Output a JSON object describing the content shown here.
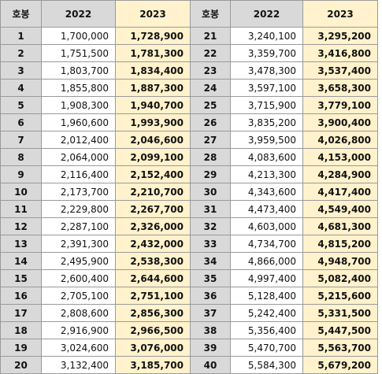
{
  "headers": [
    "호봉",
    "2022",
    "2023",
    "호봉",
    "2022",
    "2023"
  ],
  "rows": [
    [
      "1",
      "1,700,000",
      "1,728,900",
      "21",
      "3,240,100",
      "3,295,200"
    ],
    [
      "2",
      "1,751,500",
      "1,781,300",
      "22",
      "3,359,700",
      "3,416,800"
    ],
    [
      "3",
      "1,803,700",
      "1,834,400",
      "23",
      "3,478,300",
      "3,537,400"
    ],
    [
      "4",
      "1,855,800",
      "1,887,300",
      "24",
      "3,597,100",
      "3,658,300"
    ],
    [
      "5",
      "1,908,300",
      "1,940,700",
      "25",
      "3,715,900",
      "3,779,100"
    ],
    [
      "6",
      "1,960,600",
      "1,993,900",
      "26",
      "3,835,200",
      "3,900,400"
    ],
    [
      "7",
      "2,012,400",
      "2,046,600",
      "27",
      "3,959,500",
      "4,026,800"
    ],
    [
      "8",
      "2,064,000",
      "2,099,100",
      "28",
      "4,083,600",
      "4,153,000"
    ],
    [
      "9",
      "2,116,400",
      "2,152,400",
      "29",
      "4,213,300",
      "4,284,900"
    ],
    [
      "10",
      "2,173,700",
      "2,210,700",
      "30",
      "4,343,600",
      "4,417,400"
    ],
    [
      "11",
      "2,229,800",
      "2,267,700",
      "31",
      "4,473,400",
      "4,549,400"
    ],
    [
      "12",
      "2,287,100",
      "2,326,000",
      "32",
      "4,603,000",
      "4,681,300"
    ],
    [
      "13",
      "2,391,300",
      "2,432,000",
      "33",
      "4,734,700",
      "4,815,200"
    ],
    [
      "14",
      "2,495,900",
      "2,538,300",
      "34",
      "4,866,000",
      "4,948,700"
    ],
    [
      "15",
      "2,600,400",
      "2,644,600",
      "35",
      "4,997,400",
      "5,082,400"
    ],
    [
      "16",
      "2,705,100",
      "2,751,100",
      "36",
      "5,128,400",
      "5,215,600"
    ],
    [
      "17",
      "2,808,600",
      "2,856,300",
      "37",
      "5,242,400",
      "5,331,500"
    ],
    [
      "18",
      "2,916,900",
      "2,966,500",
      "38",
      "5,356,400",
      "5,447,500"
    ],
    [
      "19",
      "3,024,600",
      "3,076,000",
      "39",
      "5,470,700",
      "5,563,700"
    ],
    [
      "20",
      "3,132,400",
      "3,185,700",
      "40",
      "5,584,300",
      "5,679,200"
    ]
  ],
  "colors": {
    "header_gray": "#d9d9d9",
    "highlight_yellow": "#fff2cc",
    "border": "#9a9a9a"
  }
}
